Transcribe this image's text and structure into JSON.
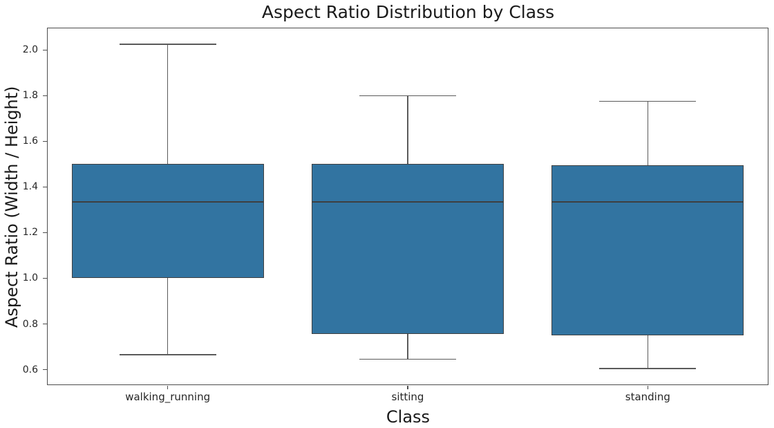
{
  "chart_data": {
    "type": "boxplot",
    "title": "Aspect Ratio Distribution by Class",
    "xlabel": "Class",
    "ylabel": "Aspect Ratio (Width / Height)",
    "categories": [
      "walking_running",
      "sitting",
      "standing"
    ],
    "series": [
      {
        "name": "walking_running",
        "whisker_low": 0.665,
        "q1": 1.0,
        "median": 1.335,
        "q3": 1.5,
        "whisker_high": 2.025
      },
      {
        "name": "sitting",
        "whisker_low": 0.645,
        "q1": 0.755,
        "median": 1.335,
        "q3": 1.5,
        "whisker_high": 1.8
      },
      {
        "name": "standing",
        "whisker_low": 0.605,
        "q1": 0.75,
        "median": 1.335,
        "q3": 1.495,
        "whisker_high": 1.775
      }
    ],
    "yticks": [
      0.6,
      0.8,
      1.0,
      1.2,
      1.4,
      1.6,
      1.8,
      2.0
    ],
    "ytick_labels": [
      "0.6",
      "0.8",
      "1.0",
      "1.2",
      "1.4",
      "1.6",
      "1.8",
      "2.0"
    ],
    "ylim": [
      0.535,
      2.095
    ],
    "grid": false,
    "legend": null,
    "colors": {
      "box_fill": "#3274a1",
      "box_edge": "#3f3f3f",
      "median": "#3f3f3f",
      "whisker": "#5a5a5a",
      "spine": "#4d4d4d"
    }
  }
}
